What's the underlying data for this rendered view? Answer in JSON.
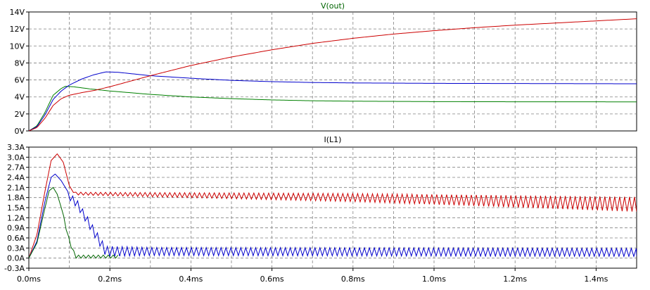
{
  "chart_data": [
    {
      "type": "line",
      "title": "V(out)",
      "title_color": "#006400",
      "ylim": [
        0,
        14
      ],
      "yticks": [
        0,
        2,
        4,
        6,
        8,
        10,
        12,
        14
      ],
      "ytick_labels": [
        "0V",
        "2V",
        "4V",
        "6V",
        "8V",
        "10V",
        "12V",
        "14V"
      ],
      "xlim": [
        0,
        1.5
      ],
      "grid": "dashed",
      "series": [
        {
          "color": "#008000",
          "points": [
            [
              0,
              0
            ],
            [
              0.02,
              0.6
            ],
            [
              0.04,
              2.2
            ],
            [
              0.06,
              4.2
            ],
            [
              0.08,
              5.0
            ],
            [
              0.09,
              5.25
            ],
            [
              0.11,
              5.2
            ],
            [
              0.15,
              4.95
            ],
            [
              0.2,
              4.7
            ],
            [
              0.3,
              4.3
            ],
            [
              0.4,
              4.0
            ],
            [
              0.5,
              3.8
            ],
            [
              0.6,
              3.65
            ],
            [
              0.7,
              3.55
            ],
            [
              0.8,
              3.5
            ],
            [
              1.0,
              3.45
            ],
            [
              1.2,
              3.43
            ],
            [
              1.5,
              3.42
            ]
          ]
        },
        {
          "color": "#0000cc",
          "points": [
            [
              0,
              0
            ],
            [
              0.02,
              0.5
            ],
            [
              0.04,
              1.9
            ],
            [
              0.06,
              3.7
            ],
            [
              0.08,
              4.7
            ],
            [
              0.1,
              5.4
            ],
            [
              0.13,
              6.1
            ],
            [
              0.16,
              6.6
            ],
            [
              0.19,
              6.95
            ],
            [
              0.22,
              6.9
            ],
            [
              0.3,
              6.5
            ],
            [
              0.4,
              6.2
            ],
            [
              0.5,
              5.95
            ],
            [
              0.6,
              5.8
            ],
            [
              0.7,
              5.7
            ],
            [
              0.8,
              5.65
            ],
            [
              1.0,
              5.6
            ],
            [
              1.2,
              5.58
            ],
            [
              1.5,
              5.55
            ]
          ]
        },
        {
          "color": "#cc0000",
          "points": [
            [
              0,
              0
            ],
            [
              0.02,
              0.4
            ],
            [
              0.04,
              1.5
            ],
            [
              0.06,
              3.0
            ],
            [
              0.08,
              3.8
            ],
            [
              0.1,
              4.2
            ],
            [
              0.13,
              4.5
            ],
            [
              0.16,
              4.75
            ],
            [
              0.2,
              5.2
            ],
            [
              0.3,
              6.5
            ],
            [
              0.4,
              7.7
            ],
            [
              0.5,
              8.7
            ],
            [
              0.6,
              9.55
            ],
            [
              0.7,
              10.3
            ],
            [
              0.8,
              10.9
            ],
            [
              0.9,
              11.4
            ],
            [
              1.0,
              11.8
            ],
            [
              1.1,
              12.15
            ],
            [
              1.2,
              12.45
            ],
            [
              1.3,
              12.7
            ],
            [
              1.4,
              12.95
            ],
            [
              1.5,
              13.2
            ]
          ]
        }
      ]
    },
    {
      "type": "line",
      "title": "I(L1)",
      "title_color": "#000000",
      "ylim": [
        -0.3,
        3.3
      ],
      "yticks": [
        -0.3,
        0.0,
        0.3,
        0.6,
        0.9,
        1.2,
        1.5,
        1.8,
        2.1,
        2.4,
        2.7,
        3.0,
        3.3
      ],
      "ytick_labels": [
        "-0.3A",
        "0.0A",
        "0.3A",
        "0.6A",
        "0.9A",
        "1.2A",
        "1.5A",
        "1.8A",
        "2.1A",
        "2.4A",
        "2.7A",
        "3.0A",
        "3.3A"
      ],
      "xlabel_ticks": [
        0.0,
        0.2,
        0.4,
        0.6,
        0.8,
        1.0,
        1.2,
        1.4
      ],
      "xtick_labels": [
        "0.0ms",
        "0.2ms",
        "0.4ms",
        "0.6ms",
        "0.8ms",
        "1.0ms",
        "1.2ms",
        "1.4ms"
      ],
      "xlim": [
        0,
        1.5
      ],
      "grid": "dashed",
      "series": [
        {
          "color": "#cc0000",
          "envelope": [
            [
              0,
              0
            ],
            [
              0.02,
              0.7
            ],
            [
              0.04,
              2.0
            ],
            [
              0.055,
              2.9
            ],
            [
              0.07,
              3.1
            ],
            [
              0.085,
              2.85
            ],
            [
              0.1,
              2.15
            ],
            [
              0.11,
              1.95
            ]
          ],
          "ripple": {
            "from": 0.11,
            "to": 1.5,
            "period": 0.0122,
            "center": [
              [
                0.11,
                1.92
              ],
              [
                0.8,
                1.8
              ],
              [
                1.5,
                1.6
              ]
            ],
            "amp": [
              [
                0.11,
                0.04
              ],
              [
                0.8,
                0.12
              ],
              [
                1.5,
                0.22
              ]
            ]
          }
        },
        {
          "color": "#0000cc",
          "envelope": [
            [
              0,
              0
            ],
            [
              0.02,
              0.5
            ],
            [
              0.04,
              1.7
            ],
            [
              0.055,
              2.4
            ],
            [
              0.065,
              2.5
            ],
            [
              0.08,
              2.3
            ],
            [
              0.09,
              2.1
            ]
          ],
          "ripple": {
            "from": 0.09,
            "to": 1.5,
            "period": 0.0122,
            "center": [
              [
                0.09,
                1.95
              ],
              [
                0.12,
                1.6
              ],
              [
                0.16,
                0.8
              ],
              [
                0.19,
                0.2
              ],
              [
                1.5,
                0.17
              ]
            ],
            "amp": [
              [
                0.09,
                0.1
              ],
              [
                0.2,
                0.15
              ],
              [
                0.3,
                0.12
              ],
              [
                1.5,
                0.12
              ]
            ]
          }
        },
        {
          "color": "#006400",
          "envelope": [
            [
              0,
              0
            ],
            [
              0.02,
              0.45
            ],
            [
              0.04,
              1.5
            ],
            [
              0.05,
              2.0
            ],
            [
              0.06,
              2.1
            ],
            [
              0.07,
              1.9
            ],
            [
              0.08,
              1.5
            ],
            [
              0.09,
              1.05
            ],
            [
              0.1,
              0.5
            ],
            [
              0.11,
              0.05
            ],
            [
              0.12,
              0.0
            ]
          ],
          "ripple": {
            "from": 0.08,
            "to": 0.22,
            "period": 0.0122,
            "center": [
              [
                0.08,
                1.5
              ],
              [
                0.1,
                0.5
              ],
              [
                0.115,
                0.04
              ],
              [
                0.22,
                0.04
              ]
            ],
            "amp": [
              [
                0.08,
                0.05
              ],
              [
                0.22,
                0.05
              ]
            ]
          }
        }
      ]
    }
  ]
}
